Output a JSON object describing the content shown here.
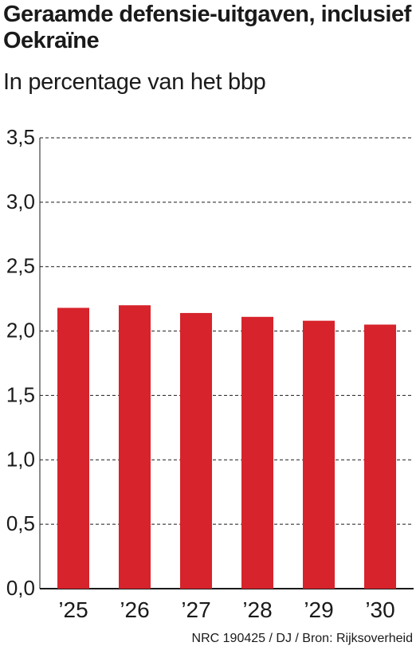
{
  "chart_data": {
    "type": "bar",
    "title": "Geraamde defensie-uitgaven, inclusief Oekraïne",
    "subtitle": "In percentage van het bbp",
    "categories": [
      "’25",
      "’26",
      "’27",
      "’28",
      "’29",
      "’30"
    ],
    "values": [
      2.18,
      2.2,
      2.14,
      2.11,
      2.08,
      2.05
    ],
    "ylim": [
      0,
      3.5
    ],
    "yticks": [
      0.0,
      0.5,
      1.0,
      1.5,
      2.0,
      2.5,
      3.0,
      3.5
    ],
    "ytick_labels": [
      "0,0",
      "0,5",
      "1,0",
      "1,5",
      "2,0",
      "2,5",
      "3,0",
      "3,5"
    ],
    "grid": true,
    "bar_color": "#d7232b",
    "source": "NRC 190425 / DJ / Bron: Rijksoverheid"
  }
}
